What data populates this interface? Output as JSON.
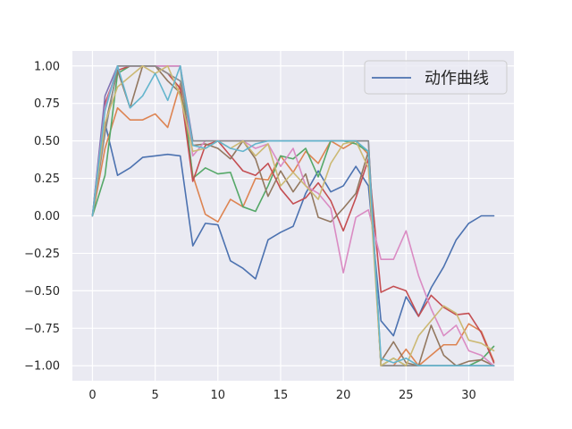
{
  "chart_data": {
    "type": "line",
    "title": "",
    "xlabel": "",
    "ylabel": "",
    "xlim": [
      -1.6,
      33.6
    ],
    "ylim": [
      -1.1,
      1.1
    ],
    "x_ticks": [
      0,
      5,
      10,
      15,
      20,
      25,
      30
    ],
    "y_ticks": [
      1.0,
      0.75,
      0.5,
      0.25,
      0.0,
      -0.25,
      -0.5,
      -0.75,
      -1.0
    ],
    "x_tick_labels": [
      "0",
      "5",
      "10",
      "15",
      "20",
      "25",
      "30"
    ],
    "y_tick_labels": [
      "1.00",
      "0.75",
      "0.50",
      "0.25",
      "0.00",
      "−0.25",
      "−0.50",
      "−0.75",
      "−1.00"
    ],
    "grid": true,
    "legend_position": "top-right",
    "legend": [
      {
        "label": "动作曲线",
        "color": "#4c72b0"
      }
    ],
    "x": [
      0,
      1,
      2,
      3,
      4,
      5,
      6,
      7,
      8,
      9,
      10,
      11,
      12,
      13,
      14,
      15,
      16,
      17,
      18,
      19,
      20,
      21,
      22,
      23,
      24,
      25,
      26,
      27,
      28,
      29,
      30,
      31,
      32
    ],
    "series": [
      {
        "color": "#4c72b0",
        "values": [
          0,
          0.62,
          0.27,
          0.32,
          0.39,
          0.4,
          0.41,
          0.4,
          -0.2,
          -0.05,
          -0.06,
          -0.3,
          -0.35,
          -0.42,
          -0.16,
          -0.11,
          -0.07,
          0.15,
          0.3,
          0.16,
          0.2,
          0.33,
          0.2,
          -0.7,
          -0.8,
          -0.54,
          -0.67,
          -0.48,
          -0.34,
          -0.16,
          -0.05,
          0,
          0
        ]
      },
      {
        "color": "#dd8452",
        "values": [
          0,
          0.45,
          0.72,
          0.64,
          0.64,
          0.68,
          0.59,
          0.88,
          0.27,
          0.01,
          -0.04,
          0.11,
          0.06,
          0.25,
          0.24,
          0.4,
          0.29,
          0.43,
          0.35,
          0.5,
          0.45,
          0.5,
          0.41,
          -1.0,
          -1.0,
          -0.89,
          -1.0,
          -0.93,
          -0.86,
          -0.86,
          -0.72,
          -0.77,
          -0.97
        ]
      },
      {
        "color": "#55a868",
        "values": [
          0,
          0.27,
          0.95,
          1.0,
          1.0,
          1.0,
          1.0,
          1.0,
          0.25,
          0.32,
          0.28,
          0.29,
          0.06,
          0.03,
          0.2,
          0.4,
          0.38,
          0.45,
          0.26,
          0.5,
          0.5,
          0.48,
          0.43,
          -1.0,
          -0.95,
          -1.0,
          -1.0,
          -1.0,
          -1.0,
          -1.0,
          -1.0,
          -0.96,
          -0.87
        ]
      },
      {
        "color": "#c44e52",
        "values": [
          0,
          0.75,
          0.97,
          1.0,
          1.0,
          1.0,
          0.95,
          0.85,
          0.23,
          0.47,
          0.5,
          0.4,
          0.3,
          0.27,
          0.35,
          0.18,
          0.08,
          0.12,
          0.22,
          0.1,
          -0.1,
          0.12,
          0.38,
          -0.51,
          -0.47,
          -0.5,
          -0.67,
          -0.53,
          -0.61,
          -0.66,
          -0.65,
          -0.78,
          -0.98
        ]
      },
      {
        "color": "#8172b3",
        "values": [
          0,
          0.8,
          1.0,
          1.0,
          1.0,
          1.0,
          1.0,
          1.0,
          0.5,
          0.5,
          0.5,
          0.5,
          0.5,
          0.5,
          0.5,
          0.5,
          0.5,
          0.5,
          0.5,
          0.5,
          0.5,
          0.5,
          0.5,
          -1.0,
          -1.0,
          -1.0,
          -1.0,
          -1.0,
          -1.0,
          -1.0,
          -1.0,
          -1.0,
          -1.0
        ]
      },
      {
        "color": "#937860",
        "values": [
          0,
          0.6,
          0.97,
          0.72,
          1.0,
          1.0,
          0.9,
          0.82,
          0.47,
          0.48,
          0.45,
          0.38,
          0.5,
          0.38,
          0.13,
          0.3,
          0.16,
          0.28,
          -0.01,
          -0.04,
          0.05,
          0.15,
          0.43,
          -0.97,
          -0.84,
          -0.98,
          -1.0,
          -0.73,
          -0.93,
          -1.0,
          -0.97,
          -0.96,
          -1.0
        ]
      },
      {
        "color": "#da8bc3",
        "values": [
          0,
          0.72,
          1.0,
          1.0,
          1.0,
          1.0,
          1.0,
          1.0,
          0.4,
          0.5,
          0.5,
          0.5,
          0.5,
          0.45,
          0.48,
          0.33,
          0.45,
          0.2,
          0.15,
          0.05,
          -0.38,
          -0.01,
          0.04,
          -0.29,
          -0.29,
          -0.1,
          -0.4,
          -0.62,
          -0.8,
          -0.73,
          -0.9,
          -0.93,
          -1.0
        ]
      },
      {
        "color": "#8c8c8c",
        "values": [
          0,
          0.55,
          1.0,
          1.0,
          1.0,
          1.0,
          0.95,
          0.9,
          0.5,
          0.5,
          0.5,
          0.5,
          0.5,
          0.5,
          0.5,
          0.5,
          0.5,
          0.5,
          0.5,
          0.5,
          0.5,
          0.5,
          0.5,
          -1.0,
          -1.0,
          -1.0,
          -1.0,
          -1.0,
          -1.0,
          -1.0,
          -1.0,
          -1.0,
          -1.0
        ]
      },
      {
        "color": "#ccb974",
        "values": [
          0,
          0.62,
          0.86,
          0.93,
          1.0,
          0.95,
          1.0,
          0.8,
          0.43,
          0.45,
          0.5,
          0.45,
          0.5,
          0.4,
          0.48,
          0.2,
          0.29,
          0.2,
          0.11,
          0.35,
          0.48,
          0.5,
          0.32,
          -1.0,
          -0.95,
          -1.0,
          -0.8,
          -0.7,
          -0.6,
          -0.65,
          -0.83,
          -0.85,
          -0.9
        ]
      },
      {
        "color": "#64b5cd",
        "values": [
          0,
          0.7,
          1.0,
          0.72,
          0.8,
          0.95,
          0.77,
          1.0,
          0.47,
          0.45,
          0.5,
          0.45,
          0.43,
          0.48,
          0.5,
          0.5,
          0.5,
          0.5,
          0.5,
          0.5,
          0.5,
          0.5,
          0.43,
          -0.95,
          -0.98,
          -0.95,
          -1.0,
          -1.0,
          -1.0,
          -1.0,
          -1.0,
          -1.0,
          -1.0
        ]
      }
    ]
  }
}
